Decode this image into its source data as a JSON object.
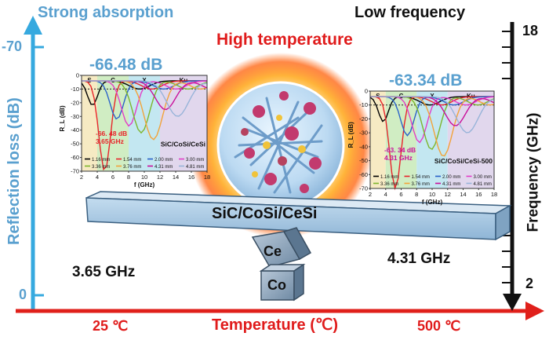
{
  "headers": {
    "strong_absorption": "Strong absorption",
    "low_frequency": "Low frequency",
    "high_temperature": "High temperature"
  },
  "left_axis": {
    "label": "Reflection loss (dB)",
    "top_tick": "-70",
    "bottom_tick": "0",
    "color": "#36a9df"
  },
  "right_axis": {
    "label": "Frequency (GHz)",
    "top_tick": "18",
    "bottom_tick": "2",
    "color": "#111111"
  },
  "bottom_axis": {
    "label": "Temperature (℃)",
    "left_tick": "25 ℃",
    "right_tick": "500 ℃",
    "color": "#e0201b"
  },
  "balance": {
    "beam_label": "SiC/CoSi/CeSi",
    "left_block": "Ce",
    "right_block": "Co",
    "left_freq": "3.65 GHz",
    "right_freq": "4.31 GHz"
  },
  "left_panel": {
    "big_value": "-66.48 dB",
    "peak_rl": "-66. 48 dB",
    "peak_freq": "3.65 GHz",
    "sample": "SiC/CoSi/CeSi",
    "bands": [
      "S",
      "C",
      "X",
      "Ku"
    ],
    "ylabel": "R_L (dB)",
    "xlabel": "f (GHz)",
    "xticks": [
      "2",
      "4",
      "6",
      "8",
      "10",
      "12",
      "14",
      "16",
      "18"
    ],
    "yticks": [
      "0",
      "-10",
      "-20",
      "-30",
      "-40",
      "-50",
      "-60",
      "-70"
    ],
    "legend": [
      "1.16 mm",
      "1.54 mm",
      "2.00 mm",
      "3.00 mm",
      "3.36 mm",
      "3.76 mm",
      "4.31 mm",
      "4.81 mm"
    ]
  },
  "right_panel": {
    "big_value": "-63.34 dB",
    "peak_rl": "-63. 34 dB",
    "peak_freq": "4.31 GHz",
    "sample": "SiC/CoSi/CeSi-500",
    "bands": [
      "S",
      "C",
      "X",
      "Ku"
    ],
    "ylabel": "R_L (dB)",
    "xlabel": "f (GHz)",
    "xticks": [
      "2",
      "4",
      "6",
      "8",
      "10",
      "12",
      "14",
      "16",
      "18"
    ],
    "yticks": [
      "0",
      "-10",
      "-20",
      "-30",
      "-40",
      "-50",
      "-60",
      "-70"
    ],
    "legend": [
      "1.16 mm",
      "1.54 mm",
      "2.00 mm",
      "3.00 mm",
      "3.36 mm",
      "3.76 mm",
      "4.31 mm",
      "4.81 mm"
    ]
  },
  "curve_colors": [
    "#000000",
    "#e8242a",
    "#2a62c9",
    "#e23ec7",
    "#7db52c",
    "#f2a33a",
    "#c9109b",
    "#98b4d9"
  ],
  "band_colors": [
    "#f4e6b8",
    "#c8eab8",
    "#b8e3ee",
    "#dcd0ea"
  ]
}
